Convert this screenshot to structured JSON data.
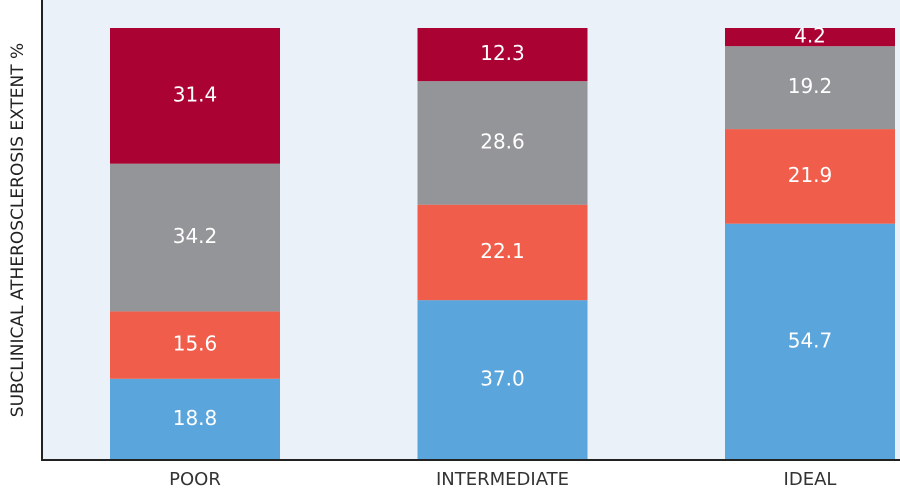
{
  "chart_data": {
    "type": "stacked_bar",
    "y_label": "SUBCLINICAL ATHEROSCLEROSIS EXTENT %",
    "categories": [
      "POOR",
      "INTERMEDIATE",
      "IDEAL"
    ],
    "series": [
      {
        "color": "#5aa5db",
        "values": [
          18.8,
          37.0,
          54.7
        ],
        "value_labels": [
          "18.8",
          "37.0",
          "54.7"
        ]
      },
      {
        "color": "#f05d4a",
        "values": [
          15.6,
          22.1,
          21.9
        ]
      },
      {
        "color": "#949598",
        "values": [
          34.2,
          28.6,
          19.2
        ]
      },
      {
        "color": "#ab0234",
        "values": [
          31.4,
          12.3,
          4.2
        ]
      }
    ],
    "ylim": [
      0,
      100
    ]
  }
}
